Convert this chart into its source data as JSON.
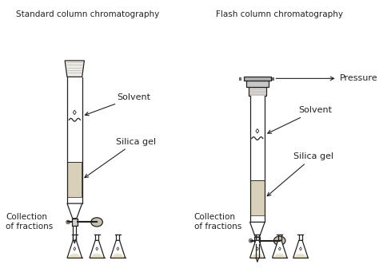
{
  "title_left": "Standard column chromatography",
  "title_right": "Flash column chromatography",
  "label_solvent": "Solvent",
  "label_silica": "Silica gel",
  "label_pressure": "Pressure",
  "label_collection": "Collection\nof fractions",
  "bg_color": "#ffffff",
  "line_color": "#222222",
  "silica_color": "#d8d0b8",
  "liquid_color": "#e8e0c0",
  "figsize": [
    4.74,
    3.46
  ],
  "dpi": 100
}
